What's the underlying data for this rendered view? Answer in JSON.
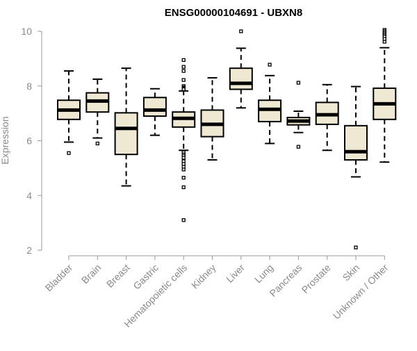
{
  "chart_data": {
    "type": "boxplot",
    "title": "ENSG00000104691 - UBXN8",
    "ylabel": "Expression",
    "xlabel": "",
    "ylim": [
      2,
      10
    ],
    "yticks": [
      2,
      4,
      6,
      8,
      10
    ],
    "grid": false,
    "box_color": "#efe8d2",
    "categories": [
      "Bladder",
      "Brain",
      "Breast",
      "Gastric",
      "Hematopoietic cells",
      "Kidney",
      "Liver",
      "Lung",
      "Pancreas",
      "Prostate",
      "Skin",
      "Unknown / Other"
    ],
    "boxes": [
      {
        "category": "Bladder",
        "whisker_low": 5.95,
        "q1": 6.78,
        "median": 7.12,
        "q3": 7.48,
        "whisker_high": 8.55,
        "outliers": [
          5.55
        ]
      },
      {
        "category": "Brain",
        "whisker_low": 6.1,
        "q1": 7.05,
        "median": 7.45,
        "q3": 7.75,
        "whisker_high": 8.25,
        "outliers": [
          5.9
        ]
      },
      {
        "category": "Breast",
        "whisker_low": 4.35,
        "q1": 5.5,
        "median": 6.45,
        "q3": 7.02,
        "whisker_high": 8.65,
        "outliers": []
      },
      {
        "category": "Gastric",
        "whisker_low": 6.2,
        "q1": 6.9,
        "median": 7.12,
        "q3": 7.58,
        "whisker_high": 7.9,
        "outliers": []
      },
      {
        "category": "Hematopoietic cells",
        "whisker_low": 5.65,
        "q1": 6.5,
        "median": 6.82,
        "q3": 7.05,
        "whisker_high": 7.82,
        "outliers": [
          8.95,
          8.7,
          8.55,
          8.22,
          8.0,
          7.95,
          7.92,
          7.9,
          7.88,
          5.58,
          5.5,
          5.45,
          5.38,
          5.25,
          5.15,
          5.05,
          4.95,
          4.65,
          4.3,
          3.1
        ]
      },
      {
        "category": "Kidney",
        "whisker_low": 5.3,
        "q1": 6.15,
        "median": 6.6,
        "q3": 7.12,
        "whisker_high": 8.3,
        "outliers": []
      },
      {
        "category": "Liver",
        "whisker_low": 7.2,
        "q1": 7.88,
        "median": 8.1,
        "q3": 8.65,
        "whisker_high": 9.38,
        "outliers": [
          10.0
        ]
      },
      {
        "category": "Lung",
        "whisker_low": 5.9,
        "q1": 6.7,
        "median": 7.15,
        "q3": 7.48,
        "whisker_high": 8.38,
        "outliers": [
          8.78
        ]
      },
      {
        "category": "Pancreas",
        "whisker_low": 6.3,
        "q1": 6.58,
        "median": 6.72,
        "q3": 6.85,
        "whisker_high": 7.08,
        "outliers": [
          8.12,
          5.78
        ]
      },
      {
        "category": "Prostate",
        "whisker_low": 5.65,
        "q1": 6.6,
        "median": 6.95,
        "q3": 7.4,
        "whisker_high": 8.05,
        "outliers": []
      },
      {
        "category": "Skin",
        "whisker_low": 4.68,
        "q1": 5.3,
        "median": 5.6,
        "q3": 6.55,
        "whisker_high": 7.98,
        "outliers": [
          2.1
        ]
      },
      {
        "category": "Unknown / Other",
        "whisker_low": 5.22,
        "q1": 6.78,
        "median": 7.35,
        "q3": 7.92,
        "whisker_high": 9.4,
        "outliers": [
          10.05,
          10.0,
          9.95,
          9.9,
          9.85,
          9.8,
          9.72,
          9.62
        ]
      }
    ]
  }
}
